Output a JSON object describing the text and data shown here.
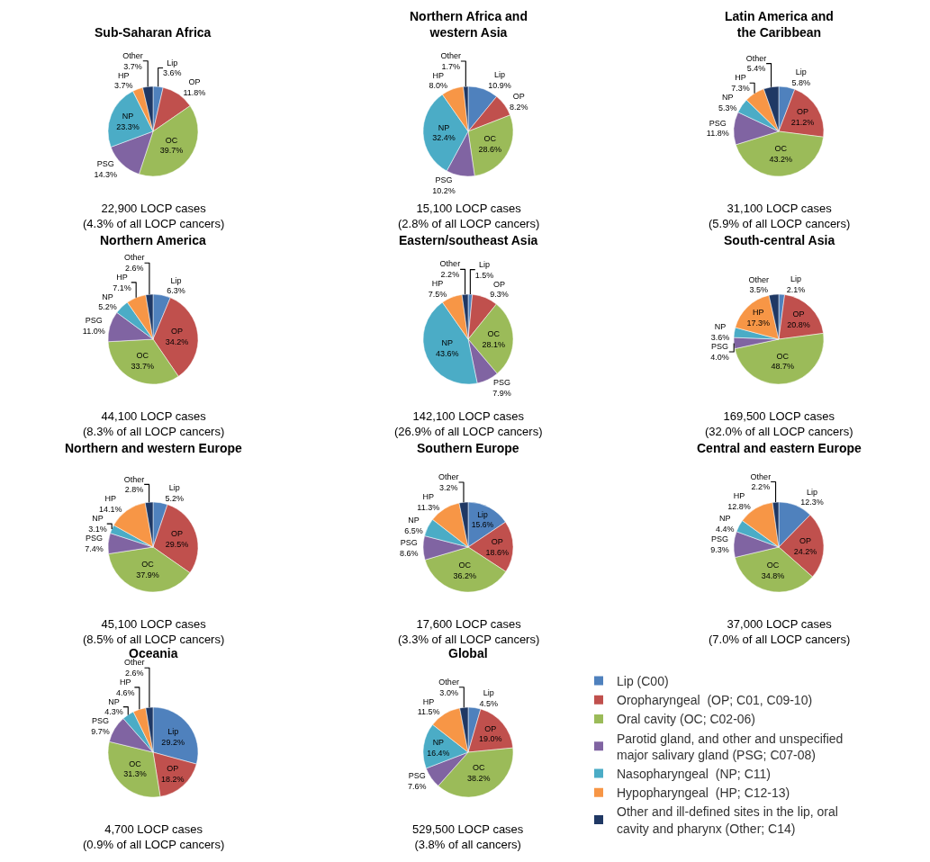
{
  "chart_data": [
    {
      "type": "pie",
      "title": "Sub-Saharan Africa",
      "categories": [
        "Lip",
        "OP",
        "OC",
        "PSG",
        "NP",
        "HP",
        "Other"
      ],
      "values": [
        3.6,
        11.8,
        39.7,
        14.3,
        23.3,
        3.7,
        3.7
      ],
      "colors": [
        "#4f81bd",
        "#c0504d",
        "#9bbb59",
        "#8064a2",
        "#4bacc6",
        "#f79646",
        "#1f3864"
      ],
      "value_labels": [
        "3.6%",
        "11.8%",
        "39.7%",
        "14.3%",
        "23.3%",
        "3.7%",
        "3.7%"
      ],
      "annotations": [
        "22,900 LOCP cases\n(4.3% of all LOCP cancers)"
      ]
    },
    {
      "type": "pie",
      "title": "Northern Africa and\nwestern Asia",
      "categories": [
        "Lip",
        "OP",
        "OC",
        "PSG",
        "NP",
        "HP",
        "Other"
      ],
      "values": [
        10.9,
        8.2,
        28.6,
        10.2,
        32.4,
        8.0,
        1.7
      ],
      "colors": [
        "#4f81bd",
        "#c0504d",
        "#9bbb59",
        "#8064a2",
        "#4bacc6",
        "#f79646",
        "#1f3864"
      ],
      "value_labels": [
        "10.9%",
        "8.2%",
        "28.6%",
        "10.2%",
        "32.4%",
        "8.0%",
        "1.7%"
      ],
      "annotations": [
        "15,100 LOCP cases\n(2.8% of all LOCP cancers)"
      ]
    },
    {
      "type": "pie",
      "title": "Latin America and\nthe Caribbean",
      "categories": [
        "Lip",
        "OP",
        "OC",
        "PSG",
        "NP",
        "HP",
        "Other"
      ],
      "values": [
        5.8,
        21.2,
        43.2,
        11.8,
        5.3,
        7.3,
        5.4
      ],
      "colors": [
        "#4f81bd",
        "#c0504d",
        "#9bbb59",
        "#8064a2",
        "#4bacc6",
        "#f79646",
        "#1f3864"
      ],
      "value_labels": [
        "5.8%",
        "21.2%",
        "43.2%",
        "11.8%",
        "5.3%",
        "7.3%",
        "5.4%"
      ],
      "annotations": [
        "31,100 LOCP cases\n(5.9% of all LOCP cancers)"
      ]
    },
    {
      "type": "pie",
      "title": "Northern America",
      "categories": [
        "Lip",
        "OP",
        "OC",
        "PSG",
        "NP",
        "HP",
        "Other"
      ],
      "values": [
        6.3,
        34.2,
        33.7,
        11.0,
        5.2,
        7.1,
        2.6
      ],
      "colors": [
        "#4f81bd",
        "#c0504d",
        "#9bbb59",
        "#8064a2",
        "#4bacc6",
        "#f79646",
        "#1f3864"
      ],
      "value_labels": [
        "6.3%",
        "34.2%",
        "33.7%",
        "11.0%",
        "5.2%",
        "7.1%",
        "2.6%"
      ],
      "annotations": [
        "44,100 LOCP cases\n(8.3% of all LOCP cancers)"
      ]
    },
    {
      "type": "pie",
      "title": "Eastern/southeast Asia",
      "categories": [
        "Lip",
        "OP",
        "OC",
        "PSG",
        "NP",
        "HP",
        "Other"
      ],
      "values": [
        1.5,
        9.3,
        28.1,
        7.9,
        43.6,
        7.5,
        2.2
      ],
      "colors": [
        "#4f81bd",
        "#c0504d",
        "#9bbb59",
        "#8064a2",
        "#4bacc6",
        "#f79646",
        "#1f3864"
      ],
      "value_labels": [
        "1.5%",
        "9.3%",
        "28.1%",
        "7.9%",
        "43.6%",
        "7.5%",
        "2.2%"
      ],
      "annotations": [
        "142,100 LOCP cases\n(26.9% of all LOCP cancers)"
      ]
    },
    {
      "type": "pie",
      "title": "South-central Asia",
      "categories": [
        "Lip",
        "OP",
        "OC",
        "PSG",
        "NP",
        "HP",
        "Other"
      ],
      "values": [
        2.1,
        20.8,
        48.7,
        4.0,
        3.6,
        17.3,
        3.5
      ],
      "colors": [
        "#4f81bd",
        "#c0504d",
        "#9bbb59",
        "#8064a2",
        "#4bacc6",
        "#f79646",
        "#1f3864"
      ],
      "value_labels": [
        "2.1%",
        "20.8%",
        "48.7%",
        "4.0%",
        "3.6%",
        "17.3%",
        "3.5%"
      ],
      "annotations": [
        "169,500 LOCP cases\n(32.0% of all LOCP cancers)"
      ]
    },
    {
      "type": "pie",
      "title": "Northern and western Europe",
      "categories": [
        "Lip",
        "OP",
        "OC",
        "PSG",
        "NP",
        "HP",
        "Other"
      ],
      "values": [
        5.2,
        29.5,
        37.9,
        7.4,
        3.1,
        14.1,
        2.8
      ],
      "colors": [
        "#4f81bd",
        "#c0504d",
        "#9bbb59",
        "#8064a2",
        "#4bacc6",
        "#f79646",
        "#1f3864"
      ],
      "value_labels": [
        "5.2%",
        "29.5%",
        "37.9%",
        "7.4%",
        "3.1%",
        "14.1%",
        "2.8%"
      ],
      "annotations": [
        "45,100 LOCP cases\n(8.5% of all LOCP cancers)"
      ]
    },
    {
      "type": "pie",
      "title": "Southern Europe",
      "categories": [
        "Lip",
        "OP",
        "OC",
        "PSG",
        "NP",
        "HP",
        "Other"
      ],
      "values": [
        15.6,
        18.6,
        36.2,
        8.6,
        6.5,
        11.3,
        3.2
      ],
      "colors": [
        "#4f81bd",
        "#c0504d",
        "#9bbb59",
        "#8064a2",
        "#4bacc6",
        "#f79646",
        "#1f3864"
      ],
      "value_labels": [
        "15.6%",
        "18.6%",
        "36.2%",
        "8.6%",
        "6.5%",
        "11.3%",
        "3.2%"
      ],
      "annotations": [
        "17,600 LOCP cases\n(3.3% of all LOCP cancers)"
      ]
    },
    {
      "type": "pie",
      "title": "Central and eastern Europe",
      "categories": [
        "Lip",
        "OP",
        "OC",
        "PSG",
        "NP",
        "HP",
        "Other"
      ],
      "values": [
        12.3,
        24.2,
        34.8,
        9.3,
        4.4,
        12.8,
        2.2
      ],
      "colors": [
        "#4f81bd",
        "#c0504d",
        "#9bbb59",
        "#8064a2",
        "#4bacc6",
        "#f79646",
        "#1f3864"
      ],
      "value_labels": [
        "12.3%",
        "24.2%",
        "34.8%",
        "9.3%",
        "4.4%",
        "12.8%",
        "2.2%"
      ],
      "annotations": [
        "37,000 LOCP cases\n(7.0% of all LOCP cancers)"
      ]
    },
    {
      "type": "pie",
      "title": "Oceania",
      "categories": [
        "Lip",
        "OP",
        "OC",
        "PSG",
        "NP",
        "HP",
        "Other"
      ],
      "values": [
        29.2,
        18.2,
        31.3,
        9.7,
        4.3,
        4.6,
        2.6
      ],
      "colors": [
        "#4f81bd",
        "#c0504d",
        "#9bbb59",
        "#8064a2",
        "#4bacc6",
        "#f79646",
        "#1f3864"
      ],
      "value_labels": [
        "29.2%",
        "18.2%",
        "31.3%",
        "9.7%",
        "4.3%",
        "4.6%",
        "2.6%"
      ],
      "annotations": [
        "4,700 LOCP cases\n(0.9% of all LOCP cancers)"
      ]
    },
    {
      "type": "pie",
      "title": "Global",
      "categories": [
        "Lip (C00)",
        "Oropharyngeal  (OP; C01, C09-10)",
        "Oral cavity (OC; C02-06)",
        "Parotid gland, and other and unspecified\nmajor salivary gland (PSG; C07-08)",
        "Nasopharyngeal  (NP; C11)",
        "Hypopharyngeal  (HP; C12-13)",
        "Other and ill-defined sites in the lip, oral\ncavity and pharynx (Other; C14)"
      ],
      "values": [
        4.5,
        19.0,
        38.2,
        7.6,
        16.4,
        11.5,
        3.0
      ],
      "colors": [
        "#4f81bd",
        "#c0504d",
        "#9bbb59",
        "#8064a2",
        "#4bacc6",
        "#f79646",
        "#1f3864"
      ],
      "value_labels": [
        "Lip\n4.5%",
        "OP\n19.0%",
        "OC\n38.2%",
        "PSG\n7.6%",
        "NP\n16.4%",
        "HP\n11.5%",
        "Other\n3.0%"
      ],
      "annotations": [
        "529,500 LOCP cases\n(3.8% of all cancers)"
      ],
      "legend": "right"
    }
  ]
}
